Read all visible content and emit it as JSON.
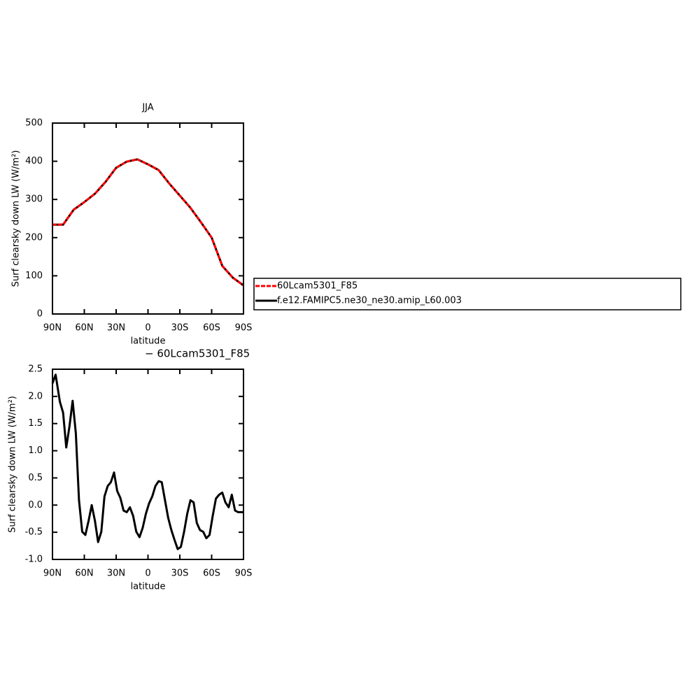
{
  "chart_data": [
    {
      "type": "line",
      "title": "JJA",
      "xlabel": "latitude",
      "ylabel": "Surf clearsky down LW (W/m²)",
      "x": [
        90,
        80,
        70,
        60,
        50,
        40,
        30,
        20,
        10,
        0,
        -10,
        -20,
        -30,
        -40,
        -50,
        -60,
        -70,
        -80,
        -90
      ],
      "series": [
        {
          "name": "60Lcam5301_F85",
          "color": "#ff0000",
          "line_style": "dashed",
          "values": [
            234,
            234,
            273,
            293,
            315,
            346,
            383,
            399,
            405,
            392,
            377,
            342,
            310,
            278,
            240,
            200,
            126,
            95,
            75
          ]
        },
        {
          "name": "f.e12.FAMIPC5.ne30_ne30.amip_L60.003",
          "color": "#000000",
          "line_style": "solid",
          "values": [
            234,
            234,
            273,
            293,
            315,
            346,
            383,
            399,
            405,
            392,
            377,
            342,
            310,
            278,
            240,
            200,
            126,
            95,
            75
          ]
        }
      ],
      "xlim": [
        90,
        -90
      ],
      "xticks": [
        {
          "value": 90,
          "label": "90N"
        },
        {
          "value": 60,
          "label": "60N"
        },
        {
          "value": 30,
          "label": "30N"
        },
        0,
        {
          "value": -30,
          "label": "30S"
        },
        {
          "value": -60,
          "label": "60S"
        },
        {
          "value": -90,
          "label": "90S"
        }
      ],
      "ylim": [
        0,
        500
      ],
      "yticks": [
        0,
        100,
        200,
        300,
        400,
        500
      ],
      "legend": "right"
    },
    {
      "type": "line",
      "title": "− 60Lcam5301_F85",
      "xlabel": "latitude",
      "ylabel": "Surf clearsky down LW (W/m²)",
      "x": [
        90,
        87,
        83,
        80,
        77,
        74,
        71,
        68,
        65,
        62,
        59,
        56,
        53,
        50,
        47,
        44,
        41,
        38,
        35,
        32,
        29,
        26,
        23,
        20,
        17,
        14,
        11,
        8,
        5,
        2,
        -1,
        -4,
        -7,
        -10,
        -13,
        -16,
        -19,
        -22,
        -25,
        -28,
        -31,
        -34,
        -37,
        -40,
        -43,
        -46,
        -49,
        -52,
        -55,
        -58,
        -61,
        -64,
        -67,
        -70,
        -73,
        -76,
        -79,
        -82,
        -85,
        -90
      ],
      "series": [
        {
          "color": "#000000",
          "line_style": "solid",
          "values": [
            2.24,
            2.4,
            1.9,
            1.7,
            1.06,
            1.45,
            1.92,
            1.32,
            0.09,
            -0.49,
            -0.55,
            -0.29,
            0.0,
            -0.29,
            -0.68,
            -0.49,
            0.16,
            0.35,
            0.42,
            0.6,
            0.26,
            0.13,
            -0.1,
            -0.13,
            -0.04,
            -0.2,
            -0.49,
            -0.59,
            -0.42,
            -0.16,
            0.03,
            0.16,
            0.35,
            0.44,
            0.42,
            0.09,
            -0.23,
            -0.46,
            -0.64,
            -0.81,
            -0.77,
            -0.49,
            -0.16,
            0.09,
            0.05,
            -0.33,
            -0.46,
            -0.49,
            -0.61,
            -0.55,
            -0.2,
            0.12,
            0.19,
            0.23,
            0.05,
            -0.04,
            0.19,
            -0.1,
            -0.13,
            -0.13
          ]
        }
      ],
      "xlim": [
        90,
        -90
      ],
      "xticks": [
        {
          "value": 90,
          "label": "90N"
        },
        {
          "value": 60,
          "label": "60N"
        },
        {
          "value": 30,
          "label": "30N"
        },
        0,
        {
          "value": -30,
          "label": "30S"
        },
        {
          "value": -60,
          "label": "60S"
        },
        {
          "value": -90,
          "label": "90S"
        }
      ],
      "ylim": [
        -1.0,
        2.5
      ],
      "yticks": [
        {
          "value": -1.0,
          "label": "-1.0"
        },
        -0.5,
        {
          "value": 0.0,
          "label": "0.0"
        },
        0.5,
        {
          "value": 1.0,
          "label": "1.0"
        },
        1.5,
        {
          "value": 2.0,
          "label": "2.0"
        },
        2.5
      ]
    }
  ]
}
